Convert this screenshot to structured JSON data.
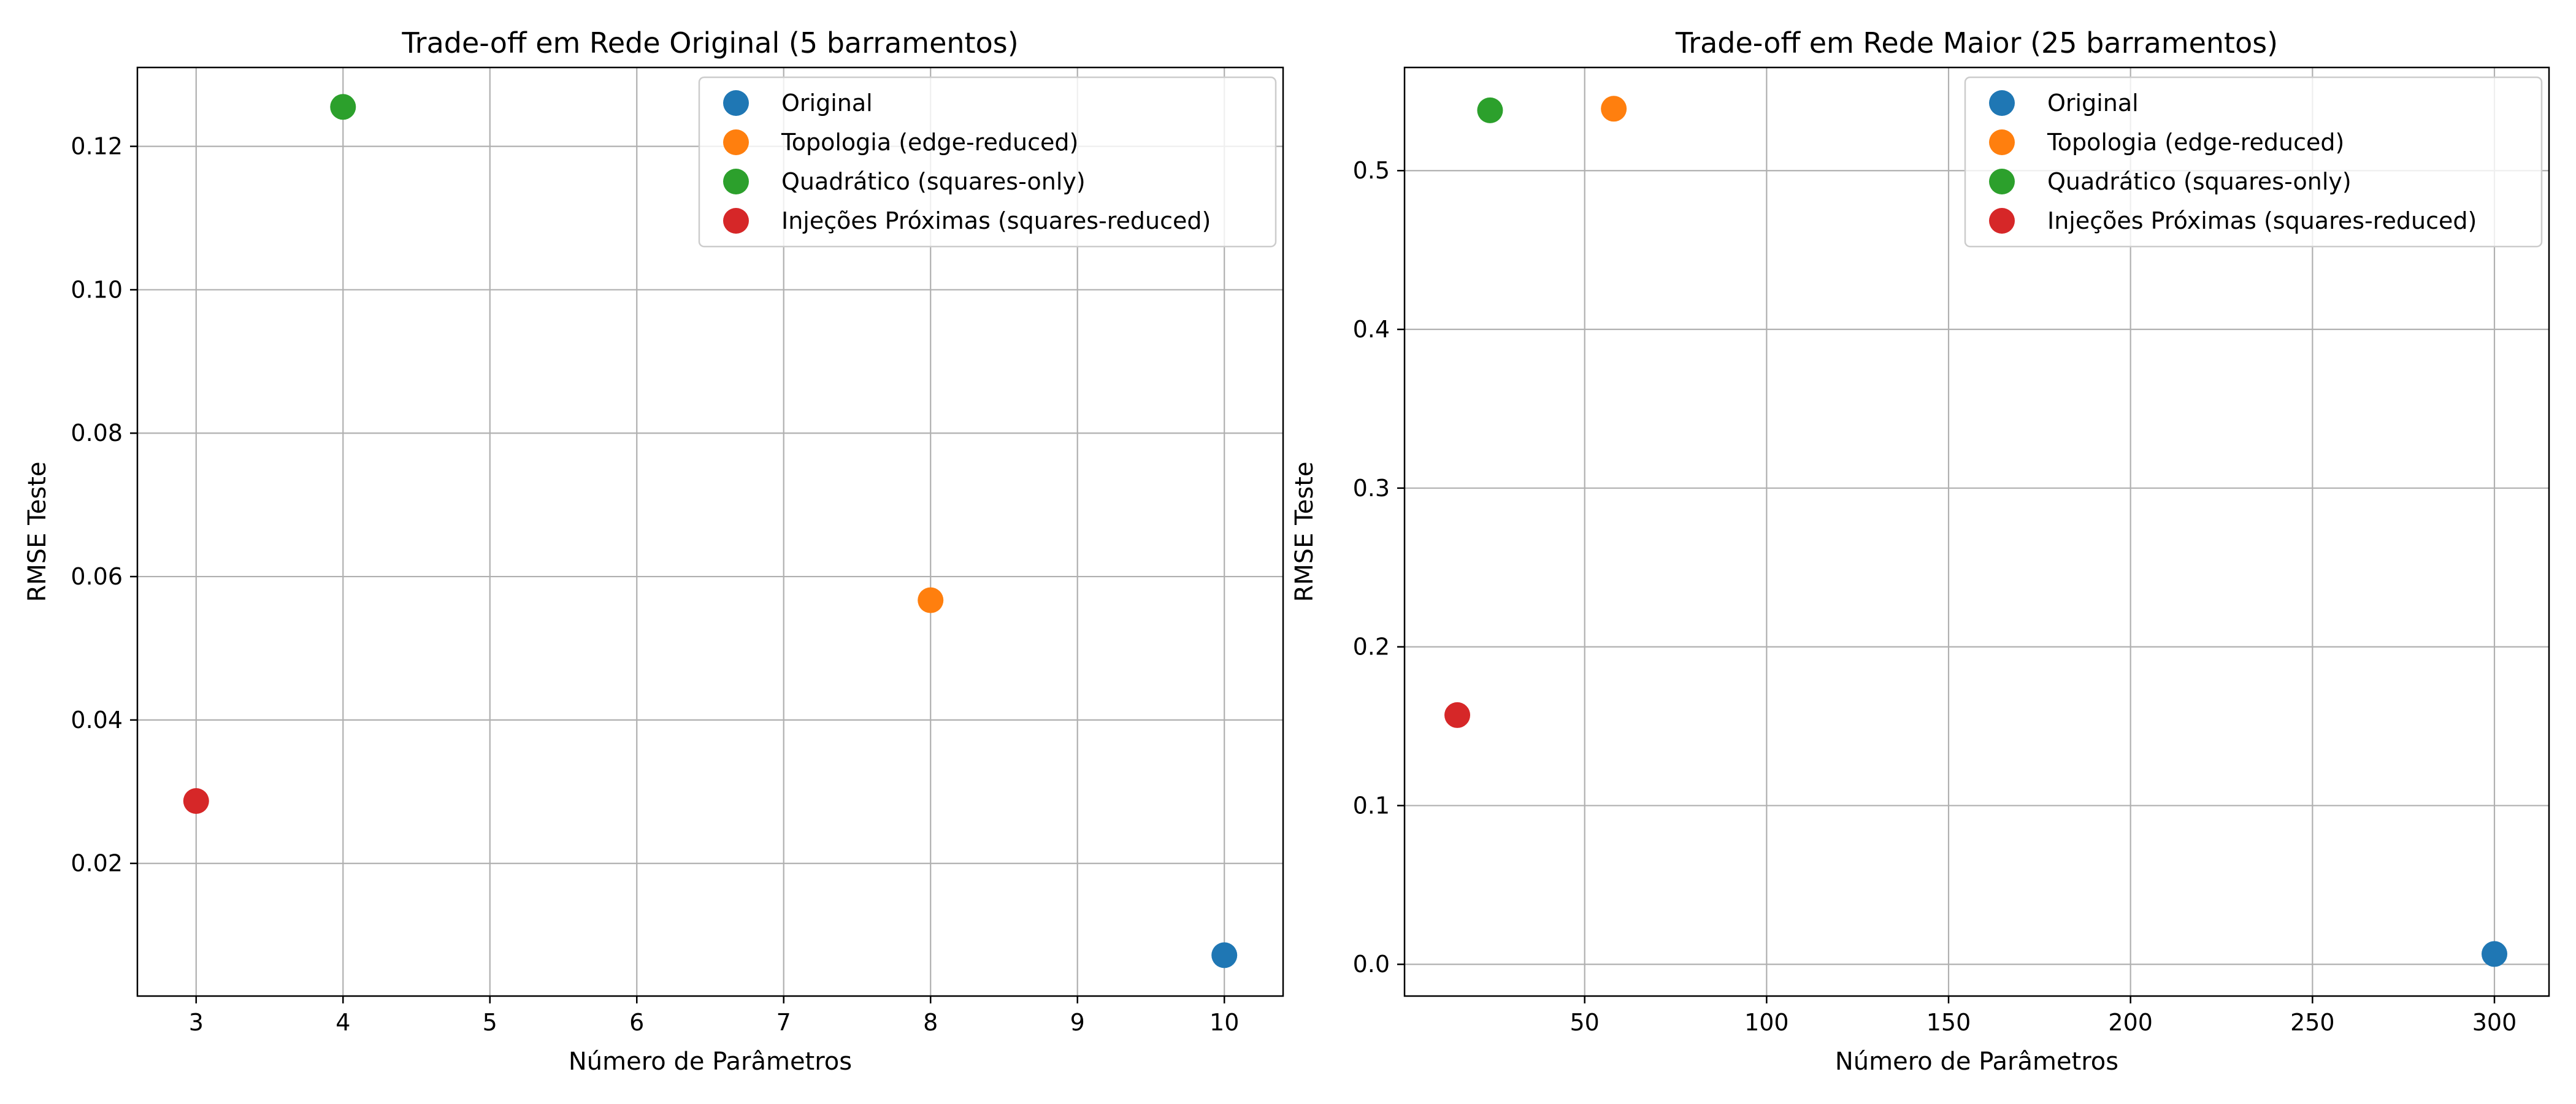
{
  "chart_data": [
    {
      "type": "scatter",
      "title": "Trade-off em Rede Original (5 barramentos)",
      "xlabel": "Número de Parâmetros",
      "ylabel": "RMSE Teste",
      "xlim": [
        2.6,
        10.4
      ],
      "ylim": [
        0.0015,
        0.131
      ],
      "xticks": [
        3,
        4,
        5,
        6,
        7,
        8,
        9,
        10
      ],
      "xtick_labels": [
        "3",
        "4",
        "5",
        "6",
        "7",
        "8",
        "9",
        "10"
      ],
      "yticks": [
        0.02,
        0.04,
        0.06,
        0.08,
        0.1,
        0.12
      ],
      "ytick_labels": [
        "0.02",
        "0.04",
        "0.06",
        "0.08",
        "0.10",
        "0.12"
      ],
      "grid": true,
      "legend_position": "top-right",
      "series": [
        {
          "name": "Original",
          "color": "#1f77b4",
          "points": [
            [
              10,
              0.0072
            ]
          ]
        },
        {
          "name": "Topologia (edge-reduced)",
          "color": "#ff7f0e",
          "points": [
            [
              8,
              0.0567
            ]
          ]
        },
        {
          "name": "Quadrático (squares-only)",
          "color": "#2ca02c",
          "points": [
            [
              4,
              0.1255
            ]
          ]
        },
        {
          "name": "Injeções Próximas (squares-reduced)",
          "color": "#d62728",
          "points": [
            [
              3,
              0.0287
            ]
          ]
        }
      ]
    },
    {
      "type": "scatter",
      "title": "Trade-off em Rede Maior (25 barramentos)",
      "xlabel": "Número de Parâmetros",
      "ylabel": "RMSE Teste",
      "xlim": [
        0.5,
        315
      ],
      "ylim": [
        -0.02,
        0.565
      ],
      "xticks": [
        50,
        100,
        150,
        200,
        250,
        300
      ],
      "xtick_labels": [
        "50",
        "100",
        "150",
        "200",
        "250",
        "300"
      ],
      "yticks": [
        0.0,
        0.1,
        0.2,
        0.3,
        0.4,
        0.5
      ],
      "ytick_labels": [
        "0.0",
        "0.1",
        "0.2",
        "0.3",
        "0.4",
        "0.5"
      ],
      "grid": true,
      "legend_position": "top-right",
      "series": [
        {
          "name": "Original",
          "color": "#1f77b4",
          "points": [
            [
              300,
              0.0065
            ]
          ]
        },
        {
          "name": "Topologia (edge-reduced)",
          "color": "#ff7f0e",
          "points": [
            [
              58,
              0.539
            ]
          ]
        },
        {
          "name": "Quadrático (squares-only)",
          "color": "#2ca02c",
          "points": [
            [
              24,
              0.538
            ]
          ]
        },
        {
          "name": "Injeções Próximas (squares-reduced)",
          "color": "#d62728",
          "points": [
            [
              15,
              0.157
            ]
          ]
        }
      ]
    }
  ]
}
